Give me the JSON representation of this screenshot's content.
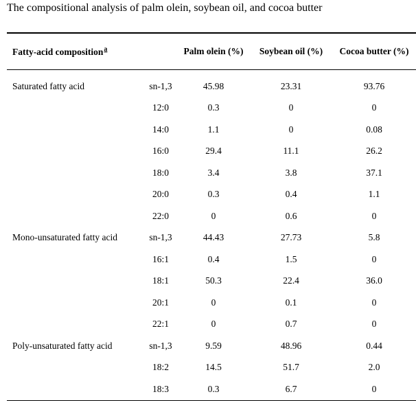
{
  "caption": "The compositional analysis of palm olein, soybean oil, and cocoa butter",
  "header": {
    "composition": "Fatty-acid composition",
    "footnote": "a",
    "palm": "Palm olein (%)",
    "soy": "Soybean oil (%)",
    "cocoa": "Cocoa butter (%)"
  },
  "rows": [
    {
      "group": "Saturated fatty acid",
      "sub": "sn-1,3",
      "palm": "45.98",
      "soy": "23.31",
      "cocoa": "93.76"
    },
    {
      "group": "",
      "sub": "12:0",
      "palm": "0.3",
      "soy": "0",
      "cocoa": "0"
    },
    {
      "group": "",
      "sub": "14:0",
      "palm": "1.1",
      "soy": "0",
      "cocoa": "0.08"
    },
    {
      "group": "",
      "sub": "16:0",
      "palm": "29.4",
      "soy": "11.1",
      "cocoa": "26.2"
    },
    {
      "group": "",
      "sub": "18:0",
      "palm": "3.4",
      "soy": "3.8",
      "cocoa": "37.1"
    },
    {
      "group": "",
      "sub": "20:0",
      "palm": "0.3",
      "soy": "0.4",
      "cocoa": "1.1"
    },
    {
      "group": "",
      "sub": "22:0",
      "palm": "0",
      "soy": "0.6",
      "cocoa": "0"
    },
    {
      "group": "Mono-unsaturated fatty acid",
      "sub": "sn-1,3",
      "palm": "44.43",
      "soy": "27.73",
      "cocoa": "5.8"
    },
    {
      "group": "",
      "sub": "16:1",
      "palm": "0.4",
      "soy": "1.5",
      "cocoa": "0"
    },
    {
      "group": "",
      "sub": "18:1",
      "palm": "50.3",
      "soy": "22.4",
      "cocoa": "36.0"
    },
    {
      "group": "",
      "sub": "20:1",
      "palm": "0",
      "soy": "0.1",
      "cocoa": "0"
    },
    {
      "group": "",
      "sub": "22:1",
      "palm": "0",
      "soy": "0.7",
      "cocoa": "0"
    },
    {
      "group": "Poly-unsaturated fatty acid",
      "sub": "sn-1,3",
      "palm": "9.59",
      "soy": "48.96",
      "cocoa": "0.44"
    },
    {
      "group": "",
      "sub": "18:2",
      "palm": "14.5",
      "soy": "51.7",
      "cocoa": "2.0"
    },
    {
      "group": "",
      "sub": "18:3",
      "palm": "0.3",
      "soy": "6.7",
      "cocoa": "0"
    }
  ]
}
